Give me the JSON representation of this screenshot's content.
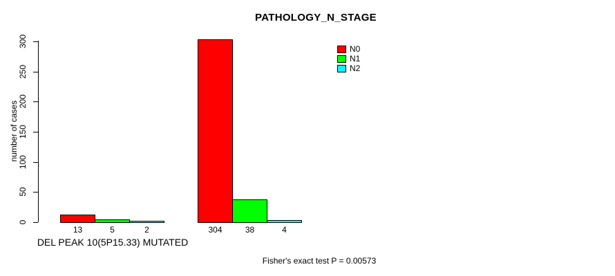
{
  "chart_data": {
    "type": "bar",
    "title": "PATHOLOGY_N_STAGE",
    "ylabel": "number of cases",
    "xlabel": "DEL PEAK 10(5P15.33) MUTATED",
    "annotation": "Fisher's exact test P = 0.00573",
    "ylim": [
      0,
      300
    ],
    "yticks": [
      0,
      50,
      100,
      150,
      200,
      250,
      300
    ],
    "grid": false,
    "legend_position": "top-right-inside",
    "group_labels": [
      "DEL PEAK 10(5P15.33) MUTATED",
      ""
    ],
    "series": [
      {
        "name": "N0",
        "color": "#ff0000",
        "values": [
          13,
          304
        ]
      },
      {
        "name": "N1",
        "color": "#00ff00",
        "values": [
          5,
          38
        ]
      },
      {
        "name": "N2",
        "color": "#00ffff",
        "values": [
          2,
          4
        ]
      }
    ],
    "bar_value_labels": [
      [
        13,
        5,
        2
      ],
      [
        304,
        38,
        4
      ]
    ],
    "axis_color": "#000000",
    "background_color": "#ffffff"
  }
}
